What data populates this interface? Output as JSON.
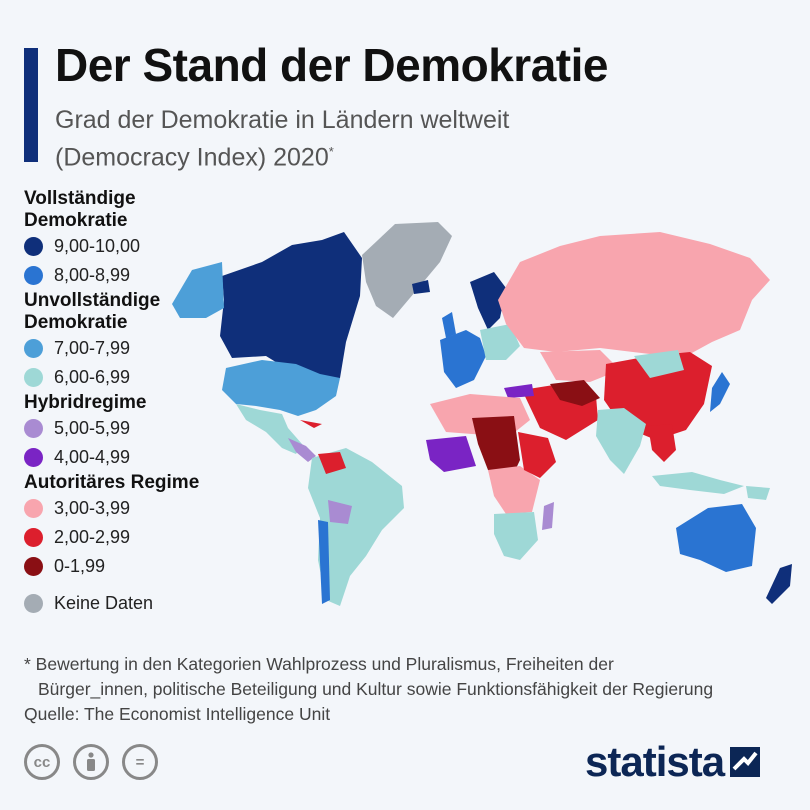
{
  "header": {
    "title": "Der Stand der Demokratie",
    "subtitle_line1": "Grad der Demokratie in Ländern weltweit",
    "subtitle_line2": "(Democracy Index) 2020",
    "subtitle_mark": "*"
  },
  "legend": {
    "groups": [
      {
        "title": "Vollständige Demokratie",
        "items": [
          {
            "label": "9,00-10,00",
            "color": "#0f2f7a"
          },
          {
            "label": "8,00-8,99",
            "color": "#2a74d2"
          }
        ]
      },
      {
        "title_line1": "Unvollständige",
        "title_line2": "Demokratie",
        "items": [
          {
            "label": "7,00-7,99",
            "color": "#4d9fd8"
          },
          {
            "label": "6,00-6,99",
            "color": "#9ed8d6"
          }
        ]
      },
      {
        "title": "Hybridregime",
        "items": [
          {
            "label": "5,00-5,99",
            "color": "#a98bd2"
          },
          {
            "label": "4,00-4,99",
            "color": "#7a24c4"
          }
        ]
      },
      {
        "title": "Autoritäres Regime",
        "items": [
          {
            "label": "3,00-3,99",
            "color": "#f8a5ae"
          },
          {
            "label": "2,00-2,99",
            "color": "#dc1f2d"
          },
          {
            "label": "0-1,99",
            "color": "#8a0f14"
          }
        ]
      }
    ],
    "no_data": {
      "label": "Keine Daten",
      "color": "#a4acb4"
    }
  },
  "footnote": {
    "line1": "* Bewertung in den Kategorien Wahlprozess und Pluralismus, Freiheiten der",
    "line2": "Bürger_innen, politische Beteiligung und Kultur sowie Funktionsfähigkeit der Regierung",
    "source": "Quelle: The Economist Intelligence Unit"
  },
  "license_icons": [
    {
      "name": "cc-icon",
      "glyph": "cc"
    },
    {
      "name": "attribution-icon",
      "glyph": ""
    },
    {
      "name": "no-derivatives-icon",
      "glyph": "="
    }
  ],
  "brand": {
    "name": "statista"
  }
}
